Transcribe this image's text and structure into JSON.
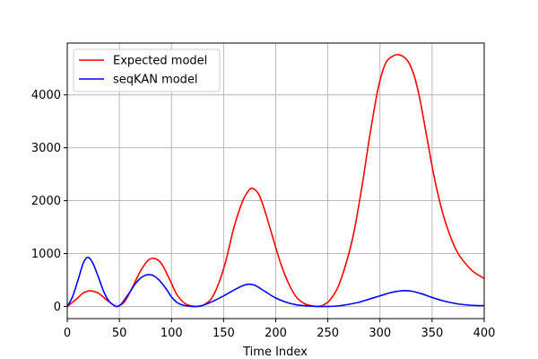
{
  "chart_data": {
    "type": "line",
    "title": "",
    "xlabel": "Time Index",
    "ylabel": "",
    "xlim": [
      0,
      400
    ],
    "ylim": [
      -230,
      4980
    ],
    "xticks": [
      0,
      50,
      100,
      150,
      200,
      250,
      300,
      350,
      400
    ],
    "xtick_labels": [
      "0",
      "50",
      "100",
      "150",
      "200",
      "250",
      "300",
      "350",
      "400"
    ],
    "yticks": [
      0,
      1000,
      2000,
      3000,
      4000
    ],
    "ytick_labels": [
      "0",
      "1000",
      "2000",
      "3000",
      "4000"
    ],
    "grid": true,
    "legend_position": "top-left",
    "series": [
      {
        "name": "Expected model",
        "color": "#ff0000",
        "x": [
          0,
          10,
          15,
          20,
          23,
          30,
          38,
          45,
          48,
          55,
          62,
          70,
          77,
          83,
          90,
          98,
          105,
          112,
          118,
          124,
          130,
          138,
          145,
          152,
          160,
          168,
          174,
          178,
          184,
          190,
          198,
          205,
          212,
          220,
          228,
          235,
          240,
          245,
          252,
          260,
          268,
          275,
          283,
          290,
          298,
          305,
          312,
          318,
          324,
          328,
          333,
          338,
          345,
          352,
          360,
          368,
          375,
          383,
          390,
          400
        ],
        "y": [
          0,
          160,
          250,
          290,
          295,
          250,
          120,
          20,
          0,
          90,
          340,
          660,
          860,
          910,
          820,
          520,
          230,
          70,
          15,
          0,
          20,
          140,
          420,
          850,
          1500,
          1980,
          2190,
          2230,
          2110,
          1780,
          1250,
          800,
          450,
          170,
          50,
          10,
          0,
          20,
          120,
          380,
          850,
          1400,
          2300,
          3200,
          4100,
          4580,
          4730,
          4760,
          4700,
          4600,
          4350,
          3950,
          3200,
          2450,
          1780,
          1300,
          1000,
          790,
          650,
          530
        ]
      },
      {
        "name": "seqKAN model",
        "color": "#0000ff",
        "x": [
          0,
          5,
          10,
          15,
          18,
          20,
          22,
          25,
          30,
          35,
          40,
          45,
          48,
          52,
          60,
          65,
          70,
          75,
          79,
          83,
          88,
          95,
          100,
          105,
          110,
          115,
          120,
          124,
          130,
          140,
          150,
          160,
          168,
          174,
          180,
          190,
          200,
          210,
          220,
          230,
          240,
          250,
          260,
          270,
          280,
          290,
          300,
          310,
          318,
          323,
          330,
          340,
          350,
          360,
          370,
          380,
          390,
          400
        ],
        "y": [
          0,
          180,
          480,
          800,
          910,
          930,
          900,
          800,
          550,
          280,
          100,
          20,
          0,
          50,
          270,
          420,
          530,
          590,
          600,
          580,
          500,
          330,
          180,
          80,
          30,
          10,
          0,
          0,
          20,
          100,
          200,
          310,
          390,
          420,
          400,
          280,
          160,
          80,
          30,
          10,
          0,
          0,
          10,
          40,
          80,
          140,
          200,
          260,
          290,
          300,
          290,
          240,
          170,
          110,
          65,
          35,
          20,
          15
        ]
      }
    ]
  }
}
